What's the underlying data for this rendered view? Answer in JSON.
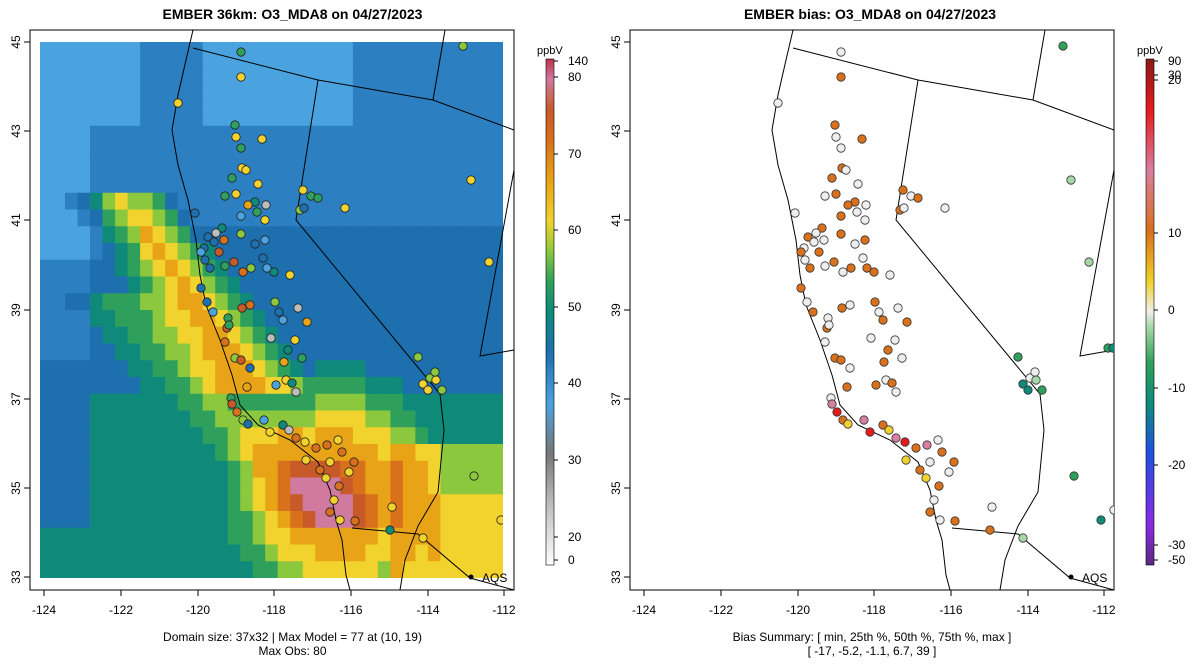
{
  "left_panel": {
    "title": "EMBER 36km: O3_MDA8 on 04/27/2023",
    "footer_line1": "Domain size: 37x32 | Max Model = 77 at (10, 19)",
    "footer_line2": "Max Obs: 80",
    "colorbar_unit": "ppbV",
    "colorbar_ticks": [
      "140",
      "80",
      "70",
      "60",
      "50",
      "40",
      "30",
      "20",
      "0"
    ],
    "colors": [
      "#ffffff",
      "#bdbdbd",
      "#777777",
      "#4aa3df",
      "#1d6fae",
      "#0f8a7a",
      "#2fa05c",
      "#8cc83e",
      "#f2d22c",
      "#e8a317",
      "#d8701c",
      "#c85a2a",
      "#d07aa0",
      "#c0304a"
    ]
  },
  "right_panel": {
    "title": "EMBER bias: O3_MDA8 on 04/27/2023",
    "footer_line1": "Bias Summary: [ min, 25th %, 50th %, 75th %, max ]",
    "footer_line2": "[ -17,   -5.2,   -1.1,   6.7,   39 ]",
    "colorbar_unit": "ppbV",
    "colorbar_ticks": [
      "90",
      "30",
      "20",
      "10",
      "0",
      "-10",
      "-20",
      "-30",
      "-50"
    ],
    "colors": [
      "#8b1a1a",
      "#e41a1c",
      "#d87fa0",
      "#d8701c",
      "#f2d22c",
      "#eeeeee",
      "#a6d8a6",
      "#2fa05c",
      "#0f8a7a",
      "#2050e0",
      "#8a2be2",
      "#5a2a80"
    ]
  },
  "axes": {
    "x_ticks": [
      "-124",
      "-122",
      "-120",
      "-118",
      "-116",
      "-114",
      "-112"
    ],
    "y_ticks": [
      "45",
      "43",
      "41",
      "39",
      "37",
      "35",
      "33"
    ],
    "xlim": [
      -124.2,
      -111.8
    ],
    "ylim": [
      32.8,
      45.1
    ]
  },
  "marker_label": "AQS"
}
